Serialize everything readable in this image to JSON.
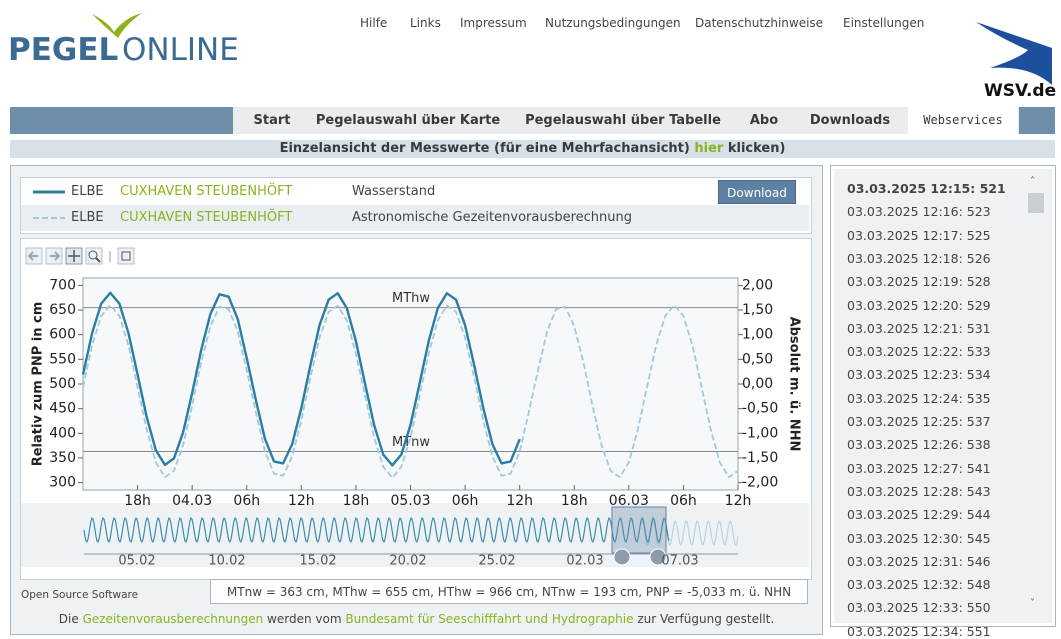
{
  "header": {
    "logo": [
      "PEGEL",
      "ONLINE"
    ],
    "links": [
      "Hilfe",
      "Links",
      "Impressum",
      "Nutzungsbedingungen",
      "Datenschutzhinweise",
      "Einstellungen"
    ],
    "wsv": "WSV.de"
  },
  "nav": [
    "Start",
    "Pegelauswahl über Karte",
    "Pegelauswahl über Tabelle",
    "Abo",
    "Downloads",
    "Webservices"
  ],
  "banner": {
    "before": "Einzelansicht der Messwerte (für eine Mehrfachansicht) ",
    "link": "hier",
    "after": " klicken)"
  },
  "legend": [
    {
      "river": "ELBE",
      "station": "CUXHAVEN STEUBENHÖFT"
    },
    {
      "river": "ELBE",
      "station": "CUXHAVEN STEUBENHÖFT"
    }
  ],
  "download": "Download",
  "chart_data": {
    "type": "line",
    "ylabel": "Relativ zum PNP in cm",
    "y2label": "Absolut m. ü. NHN",
    "x": [
      0,
      1,
      2,
      3,
      4,
      5,
      6,
      7,
      8,
      9,
      10,
      11,
      12,
      13,
      14,
      15,
      16,
      17,
      18,
      19,
      20,
      21,
      22,
      23,
      24,
      25,
      26,
      27,
      28,
      29,
      30,
      31,
      32,
      33,
      34,
      35,
      36,
      37,
      38,
      39,
      40,
      41,
      42,
      43,
      44,
      45,
      46,
      47,
      48,
      49,
      50,
      51,
      52,
      53,
      54,
      55,
      56,
      57,
      58,
      59,
      60,
      61,
      62,
      63,
      64,
      65,
      66,
      67,
      68,
      69,
      70,
      71,
      72
    ],
    "xlim": [
      0,
      72
    ],
    "xticks": [
      {
        "value": 6,
        "label": "18h"
      },
      {
        "value": 12,
        "label": "04.03"
      },
      {
        "value": 18,
        "label": "06h"
      },
      {
        "value": 24,
        "label": "12h"
      },
      {
        "value": 30,
        "label": "18h"
      },
      {
        "value": 36,
        "label": "05.03"
      },
      {
        "value": 42,
        "label": "06h"
      },
      {
        "value": 48,
        "label": "12h"
      },
      {
        "value": 54,
        "label": "18h"
      },
      {
        "value": 60,
        "label": "06.03"
      },
      {
        "value": 66,
        "label": "06h"
      },
      {
        "value": 72,
        "label": "12h"
      }
    ],
    "ylim": [
      285,
      715
    ],
    "yticks": [
      300,
      350,
      400,
      450,
      500,
      550,
      600,
      650,
      700
    ],
    "y2lim": [
      -2.15,
      2.15
    ],
    "y2ticks": [
      {
        "value": -2,
        "label": "-2,00"
      },
      {
        "value": -1.5,
        "label": "-1,50"
      },
      {
        "value": -1,
        "label": "-1,00"
      },
      {
        "value": -0.5,
        "label": "-0,50"
      },
      {
        "value": 0,
        "label": "0,00"
      },
      {
        "value": 0.5,
        "label": "0,50"
      },
      {
        "value": 1,
        "label": "1,00"
      },
      {
        "value": 1.5,
        "label": "1,50"
      },
      {
        "value": 2,
        "label": "2,00"
      }
    ],
    "reference_lines": [
      {
        "value": 655,
        "label": "MThw"
      },
      {
        "value": 363,
        "label": "MTnw"
      }
    ],
    "series": [
      {
        "name": "Wasserstand",
        "color": "#2a7ea3",
        "dashed": false,
        "values": [
          519,
          603,
          663,
          685,
          663,
          603,
          519,
          433,
          366,
          336,
          349,
          402,
          482,
          570,
          642,
          682,
          677,
          632,
          552,
          468,
          389,
          343,
          339,
          378,
          451,
          538,
          619,
          671,
          684,
          654,
          587,
          501,
          417,
          357,
          335,
          357,
          417,
          501,
          587,
          654,
          684,
          671,
          619,
          538,
          451,
          378,
          339,
          343,
          388,
          null,
          null,
          null,
          null,
          null,
          null,
          null,
          null,
          null,
          null,
          null,
          null,
          null,
          null,
          null,
          null,
          null,
          null,
          null,
          null,
          null,
          null,
          null,
          null
        ]
      },
      {
        "name": "Astronomische Gezeitenvorausberechnung",
        "color": "#9ccbdc",
        "dashed": true,
        "values": [
          494,
          578,
          638,
          660,
          638,
          578,
          494,
          408,
          341,
          311,
          324,
          376,
          457,
          545,
          617,
          657,
          652,
          607,
          527,
          443,
          364,
          318,
          314,
          353,
          426,
          513,
          594,
          646,
          659,
          629,
          562,
          476,
          392,
          332,
          310,
          332,
          392,
          476,
          562,
          629,
          659,
          646,
          594,
          513,
          426,
          353,
          314,
          318,
          363,
          443,
          527,
          606,
          652,
          657,
          617,
          545,
          457,
          376,
          324,
          311,
          341,
          408,
          494,
          578,
          638,
          660,
          638,
          578,
          494,
          408,
          341,
          311,
          324
        ]
      }
    ]
  },
  "overview": {
    "xticks": [
      "05.02",
      "10.02",
      "15.02",
      "20.02",
      "25.02",
      "02.03",
      "07.03"
    ]
  },
  "footer": {
    "oss": "Open Source Software",
    "info": "MTnw = 363 cm, MThw = 655 cm, HThw = 966 cm, NTnw = 193 cm, PNP = -5,033 m. ü. NHN",
    "credit": {
      "before": "Die ",
      "link1": "Gezeitenvorausberechnungen",
      "middle": " werden vom ",
      "link2": "Bundesamt für Seeschifffahrt und Hydrographie",
      "after": " zur Verfügung gestellt."
    }
  },
  "readings": [
    "03.03.2025 12:15: 521",
    "03.03.2025 12:16: 523",
    "03.03.2025 12:17: 525",
    "03.03.2025 12:18: 526",
    "03.03.2025 12:19: 528",
    "03.03.2025 12:20: 529",
    "03.03.2025 12:21: 531",
    "03.03.2025 12:22: 533",
    "03.03.2025 12:23: 534",
    "03.03.2025 12:24: 535",
    "03.03.2025 12:25: 537",
    "03.03.2025 12:26: 538",
    "03.03.2025 12:27: 541",
    "03.03.2025 12:28: 543",
    "03.03.2025 12:29: 544",
    "03.03.2025 12:30: 545",
    "03.03.2025 12:31: 546",
    "03.03.2025 12:32: 548",
    "03.03.2025 12:33: 550",
    "03.03.2025 12:34: 551"
  ]
}
